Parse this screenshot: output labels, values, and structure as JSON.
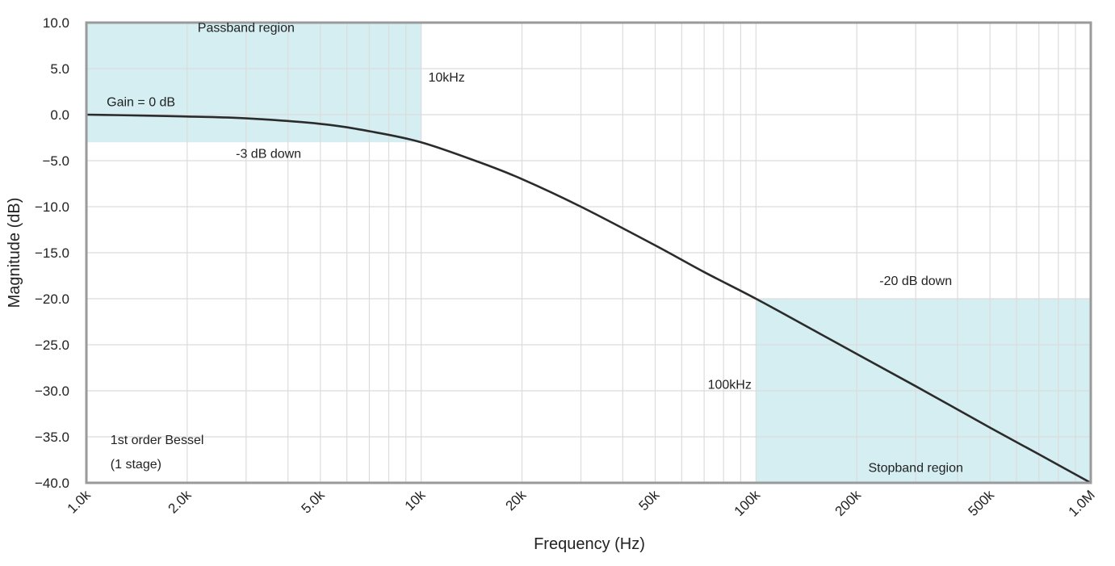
{
  "chart_data": {
    "type": "line",
    "xscale": "log",
    "title": "",
    "xlabel": "Frequency (Hz)",
    "ylabel": "Magnitude (dB)",
    "xlim": [
      1000,
      1000000
    ],
    "ylim": [
      -40,
      10
    ],
    "grid": true,
    "x_ticks": [
      {
        "value": 1000,
        "label": "1.0k"
      },
      {
        "value": 2000,
        "label": "2.0k"
      },
      {
        "value": 5000,
        "label": "5.0k"
      },
      {
        "value": 10000,
        "label": "10k"
      },
      {
        "value": 20000,
        "label": "20k"
      },
      {
        "value": 50000,
        "label": "50k"
      },
      {
        "value": 100000,
        "label": "100k"
      },
      {
        "value": 200000,
        "label": "200k"
      },
      {
        "value": 500000,
        "label": "500k"
      },
      {
        "value": 1000000,
        "label": "1.0M"
      }
    ],
    "y_ticks": [
      {
        "value": 10,
        "label": "10.0"
      },
      {
        "value": 5,
        "label": "5.0"
      },
      {
        "value": 0,
        "label": "0.0"
      },
      {
        "value": -5,
        "label": "−5.0"
      },
      {
        "value": -10,
        "label": "−10.0"
      },
      {
        "value": -15,
        "label": "−15.0"
      },
      {
        "value": -20,
        "label": "−20.0"
      },
      {
        "value": -25,
        "label": "−25.0"
      },
      {
        "value": -30,
        "label": "−30.0"
      },
      {
        "value": -35,
        "label": "−35.0"
      },
      {
        "value": -40,
        "label": "−40.0"
      }
    ],
    "series": [
      {
        "name": "1st order Bessel (1 stage)",
        "color": "#2b2b2b",
        "x": [
          1000,
          1500,
          2000,
          3000,
          5000,
          7000,
          10000,
          15000,
          20000,
          30000,
          50000,
          70000,
          100000,
          150000,
          200000,
          300000,
          500000,
          700000,
          1000000
        ],
        "values": [
          0.0,
          -0.1,
          -0.2,
          -0.4,
          -1.0,
          -1.8,
          -3.0,
          -5.2,
          -7.0,
          -10.0,
          -14.2,
          -17.1,
          -20.0,
          -23.5,
          -26.0,
          -29.5,
          -34.0,
          -36.9,
          -40.0
        ]
      }
    ],
    "regions": [
      {
        "name": "passband",
        "x": [
          1000,
          10000
        ],
        "y": [
          -3,
          10
        ],
        "color": "#d4eef2"
      },
      {
        "name": "stopband",
        "x": [
          100000,
          1000000
        ],
        "y": [
          -40,
          -20
        ],
        "color": "#d4eef2"
      }
    ],
    "annotations": [
      {
        "id": "passband-label",
        "text": "Passband region",
        "x": 3000,
        "y": 9.0,
        "anchor": "middle"
      },
      {
        "id": "cutoff-label",
        "text": "10kHz",
        "x": 10500,
        "y": 3.6,
        "anchor": "start"
      },
      {
        "id": "gain-label",
        "text": "Gain = 0 dB",
        "x": 1150,
        "y": 0.9,
        "anchor": "start"
      },
      {
        "id": "minus3db-label",
        "text": "-3 dB down",
        "x": 3500,
        "y": -4.7,
        "anchor": "middle"
      },
      {
        "id": "minus20db-label",
        "text": "-20 dB down",
        "x": 300000,
        "y": -18.5,
        "anchor": "middle"
      },
      {
        "id": "stopband-freq-label",
        "text": "100kHz",
        "x": 97000,
        "y": -29.8,
        "anchor": "end"
      },
      {
        "id": "stopband-label",
        "text": "Stopband region",
        "x": 300000,
        "y": -38.8,
        "anchor": "middle"
      },
      {
        "id": "filter-type-label",
        "text": "1st order Bessel",
        "x": 1180,
        "y": -35.8,
        "anchor": "start"
      },
      {
        "id": "filter-stage-label",
        "text": "(1 stage)",
        "x": 1180,
        "y": -38.4,
        "anchor": "start"
      }
    ],
    "colors": {
      "grid": "#dcdcdc",
      "frame": "#9a9a9a",
      "curve": "#2b2b2b",
      "region": "#d4eef2"
    }
  }
}
